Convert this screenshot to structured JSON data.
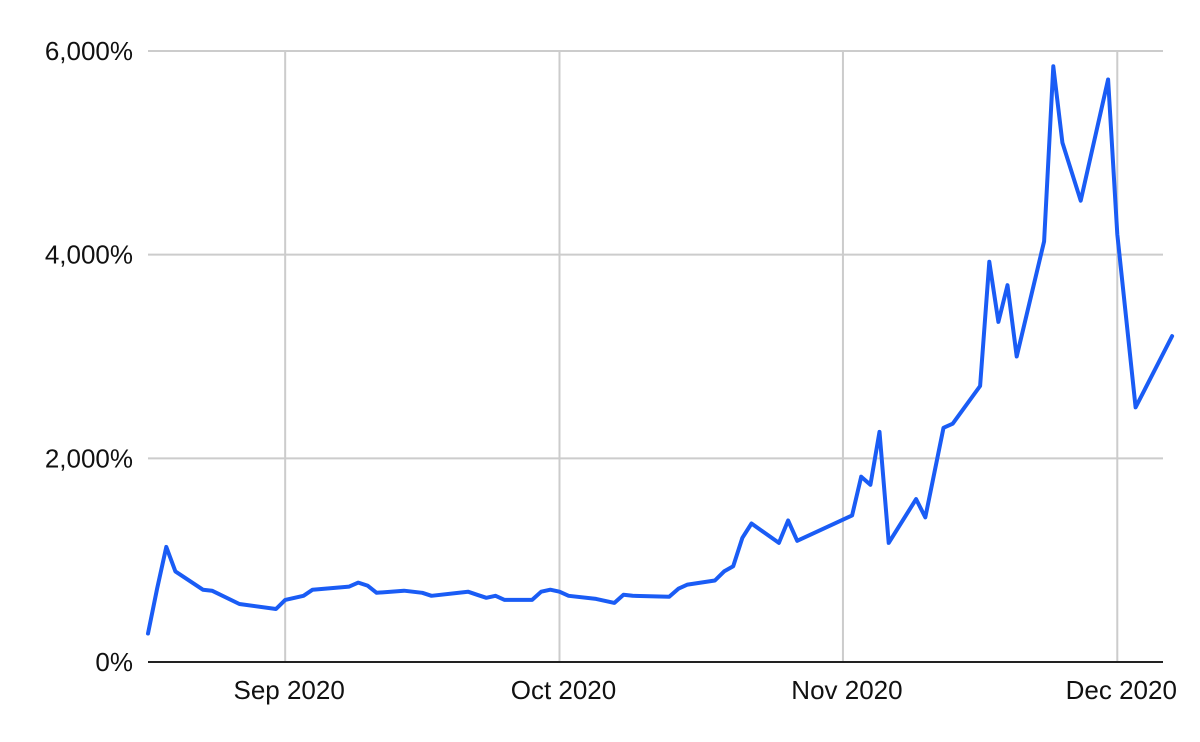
{
  "chart_data": {
    "type": "line",
    "title": "",
    "xlabel": "",
    "ylabel": "",
    "grid": true,
    "legend": "none",
    "ylim": [
      0,
      6000
    ],
    "xlim": [
      "2020-08-17",
      "2020-12-06"
    ],
    "yticks": [
      {
        "value": 0,
        "label": "0%"
      },
      {
        "value": 2000,
        "label": "2,000%"
      },
      {
        "value": 4000,
        "label": "4,000%"
      },
      {
        "value": 6000,
        "label": "6,000%"
      }
    ],
    "xticks": [
      {
        "date": "2020-09-01",
        "label": "Sep 2020"
      },
      {
        "date": "2020-10-01",
        "label": "Oct 2020"
      },
      {
        "date": "2020-11-01",
        "label": "Nov 2020"
      },
      {
        "date": "2020-12-01",
        "label": "Dec 2020"
      }
    ],
    "series": [
      {
        "color": "#1a5cf5",
        "points": [
          [
            "2020-08-17",
            280
          ],
          [
            "2020-08-18",
            720
          ],
          [
            "2020-08-19",
            1130
          ],
          [
            "2020-08-20",
            890
          ],
          [
            "2020-08-23",
            710
          ],
          [
            "2020-08-24",
            700
          ],
          [
            "2020-08-27",
            570
          ],
          [
            "2020-08-31",
            520
          ],
          [
            "2020-09-01",
            610
          ],
          [
            "2020-09-03",
            650
          ],
          [
            "2020-09-04",
            710
          ],
          [
            "2020-09-08",
            740
          ],
          [
            "2020-09-09",
            780
          ],
          [
            "2020-09-10",
            750
          ],
          [
            "2020-09-11",
            680
          ],
          [
            "2020-09-14",
            700
          ],
          [
            "2020-09-16",
            680
          ],
          [
            "2020-09-17",
            650
          ],
          [
            "2020-09-21",
            690
          ],
          [
            "2020-09-22",
            660
          ],
          [
            "2020-09-23",
            630
          ],
          [
            "2020-09-24",
            650
          ],
          [
            "2020-09-25",
            610
          ],
          [
            "2020-09-28",
            610
          ],
          [
            "2020-09-29",
            690
          ],
          [
            "2020-09-30",
            710
          ],
          [
            "2020-10-01",
            690
          ],
          [
            "2020-10-02",
            650
          ],
          [
            "2020-10-05",
            620
          ],
          [
            "2020-10-07",
            580
          ],
          [
            "2020-10-08",
            660
          ],
          [
            "2020-10-09",
            650
          ],
          [
            "2020-10-13",
            640
          ],
          [
            "2020-10-14",
            720
          ],
          [
            "2020-10-15",
            760
          ],
          [
            "2020-10-18",
            800
          ],
          [
            "2020-10-19",
            890
          ],
          [
            "2020-10-20",
            940
          ],
          [
            "2020-10-21",
            1220
          ],
          [
            "2020-10-22",
            1360
          ],
          [
            "2020-10-25",
            1170
          ],
          [
            "2020-10-26",
            1390
          ],
          [
            "2020-10-27",
            1190
          ],
          [
            "2020-11-02",
            1440
          ],
          [
            "2020-11-03",
            1820
          ],
          [
            "2020-11-04",
            1740
          ],
          [
            "2020-11-05",
            2260
          ],
          [
            "2020-11-06",
            1170
          ],
          [
            "2020-11-09",
            1600
          ],
          [
            "2020-11-10",
            1420
          ],
          [
            "2020-11-12",
            2300
          ],
          [
            "2020-11-13",
            2340
          ],
          [
            "2020-11-16",
            2710
          ],
          [
            "2020-11-17",
            3930
          ],
          [
            "2020-11-18",
            3340
          ],
          [
            "2020-11-19",
            3700
          ],
          [
            "2020-11-20",
            3000
          ],
          [
            "2020-11-23",
            4130
          ],
          [
            "2020-11-24",
            5850
          ],
          [
            "2020-11-25",
            5100
          ],
          [
            "2020-11-27",
            4530
          ],
          [
            "2020-11-30",
            5720
          ],
          [
            "2020-12-01",
            4200
          ],
          [
            "2020-12-03",
            2500
          ],
          [
            "2020-12-07",
            3200
          ]
        ]
      }
    ]
  }
}
